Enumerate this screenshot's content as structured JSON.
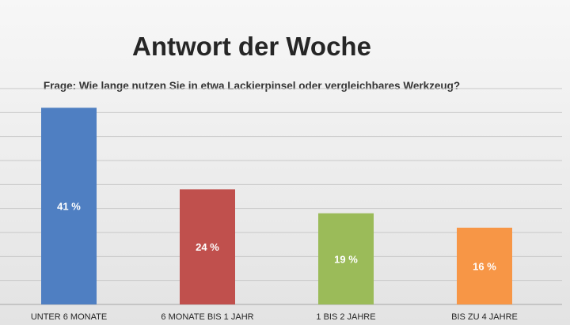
{
  "chart_data": {
    "type": "bar",
    "title": "Antwort der Woche",
    "subtitle": "Frage: Wie lange nutzen Sie in etwa Lackierpinsel oder vergleichbares Werkzeug?",
    "categories": [
      "UNTER 6 MONATE",
      "6 MONATE BIS 1 JAHR",
      "1 BIS 2 JAHRE",
      "BIS ZU 4 JAHRE"
    ],
    "values": [
      41,
      24,
      19,
      16
    ],
    "data_labels": [
      "41 %",
      "24 %",
      "19 %",
      "16 %"
    ],
    "colors": [
      "#4f7fc2",
      "#c0504d",
      "#9bbb59",
      "#f79646"
    ],
    "ylim": [
      0,
      45
    ],
    "grid": true,
    "legend": "none"
  }
}
